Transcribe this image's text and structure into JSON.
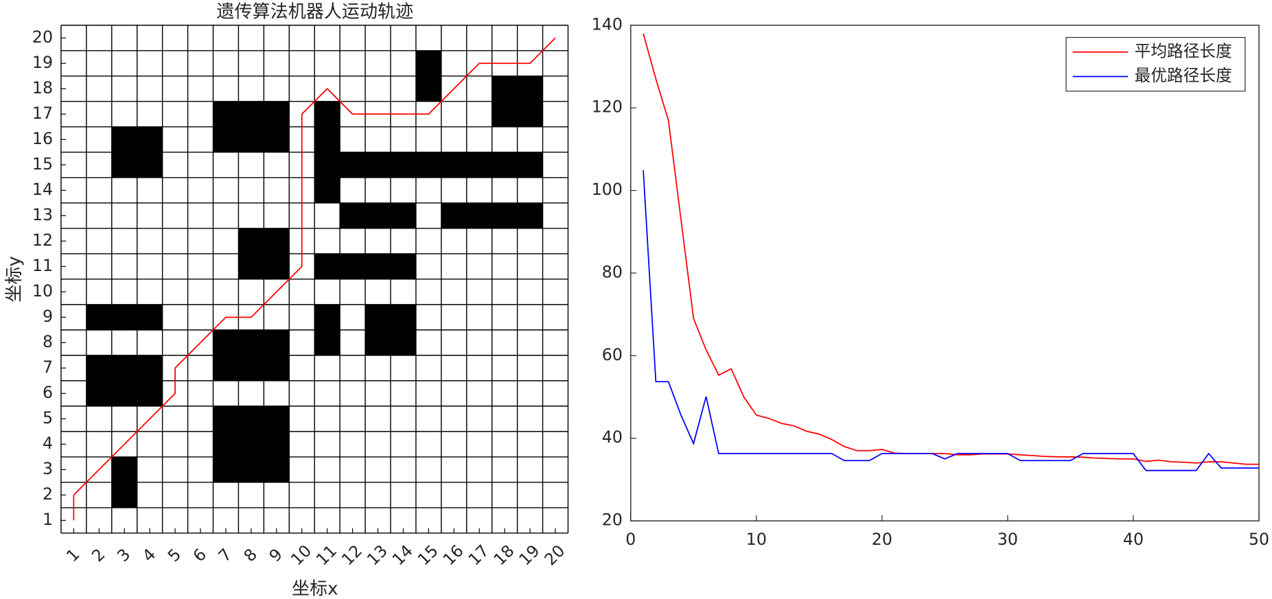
{
  "chart_data": [
    {
      "type": "grid",
      "title": "遗传算法机器人运动轨迹",
      "xlabel": "坐标x",
      "ylabel": "坐标y",
      "xlim": [
        0.5,
        20.5
      ],
      "ylim": [
        0.5,
        20.5
      ],
      "xticks": [
        1,
        2,
        3,
        4,
        5,
        6,
        7,
        8,
        9,
        10,
        11,
        12,
        13,
        14,
        15,
        16,
        17,
        18,
        19,
        20
      ],
      "yticks": [
        1,
        2,
        3,
        4,
        5,
        6,
        7,
        8,
        9,
        10,
        11,
        12,
        13,
        14,
        15,
        16,
        17,
        18,
        19,
        20
      ],
      "obstacle_color": "#000000",
      "obstacles": [
        [
          15,
          19
        ],
        [
          15,
          18
        ],
        [
          18,
          18
        ],
        [
          19,
          18
        ],
        [
          18,
          17
        ],
        [
          19,
          17
        ],
        [
          7,
          17
        ],
        [
          8,
          17
        ],
        [
          9,
          17
        ],
        [
          7,
          16
        ],
        [
          8,
          16
        ],
        [
          9,
          16
        ],
        [
          3,
          16
        ],
        [
          4,
          16
        ],
        [
          3,
          15
        ],
        [
          4,
          15
        ],
        [
          11,
          17
        ],
        [
          11,
          16
        ],
        [
          11,
          15
        ],
        [
          11,
          14
        ],
        [
          12,
          15
        ],
        [
          13,
          15
        ],
        [
          14,
          15
        ],
        [
          15,
          15
        ],
        [
          16,
          15
        ],
        [
          17,
          15
        ],
        [
          18,
          15
        ],
        [
          19,
          15
        ],
        [
          12,
          13
        ],
        [
          13,
          13
        ],
        [
          14,
          13
        ],
        [
          16,
          13
        ],
        [
          17,
          13
        ],
        [
          18,
          13
        ],
        [
          19,
          13
        ],
        [
          8,
          12
        ],
        [
          9,
          12
        ],
        [
          8,
          11
        ],
        [
          9,
          11
        ],
        [
          11,
          11
        ],
        [
          12,
          11
        ],
        [
          13,
          11
        ],
        [
          14,
          11
        ],
        [
          2,
          9
        ],
        [
          3,
          9
        ],
        [
          4,
          9
        ],
        [
          11,
          9
        ],
        [
          11,
          8
        ],
        [
          13,
          9
        ],
        [
          14,
          9
        ],
        [
          13,
          8
        ],
        [
          14,
          8
        ],
        [
          7,
          8
        ],
        [
          8,
          8
        ],
        [
          9,
          8
        ],
        [
          7,
          7
        ],
        [
          8,
          7
        ],
        [
          9,
          7
        ],
        [
          2,
          7
        ],
        [
          3,
          7
        ],
        [
          4,
          7
        ],
        [
          2,
          6
        ],
        [
          3,
          6
        ],
        [
          4,
          6
        ],
        [
          7,
          5
        ],
        [
          8,
          5
        ],
        [
          9,
          5
        ],
        [
          7,
          4
        ],
        [
          8,
          4
        ],
        [
          9,
          4
        ],
        [
          7,
          3
        ],
        [
          8,
          3
        ],
        [
          9,
          3
        ],
        [
          3,
          3
        ],
        [
          3,
          2
        ]
      ],
      "path": {
        "color": "#ff0000",
        "x": [
          1,
          1,
          5,
          5,
          7,
          8,
          10,
          10,
          11,
          12,
          15,
          17,
          19,
          20
        ],
        "y": [
          1,
          2,
          6,
          7,
          9,
          9,
          11,
          17,
          18,
          17,
          17,
          19,
          19,
          20
        ]
      }
    },
    {
      "type": "line",
      "legend": "upper right",
      "x": [
        1,
        2,
        3,
        4,
        5,
        6,
        7,
        8,
        9,
        10,
        11,
        12,
        13,
        14,
        15,
        16,
        17,
        18,
        19,
        20,
        21,
        22,
        23,
        24,
        25,
        26,
        27,
        28,
        29,
        30,
        31,
        32,
        33,
        34,
        35,
        36,
        37,
        38,
        39,
        40,
        41,
        42,
        43,
        44,
        45,
        46,
        47,
        48,
        49,
        50
      ],
      "xlim": [
        0,
        50
      ],
      "ylim": [
        20,
        140
      ],
      "xticks": [
        0,
        10,
        20,
        30,
        40,
        50
      ],
      "yticks": [
        20,
        40,
        60,
        80,
        100,
        120,
        140
      ],
      "series": [
        {
          "name": "平均路径长度",
          "color": "#ff0000",
          "values": [
            138,
            127,
            117,
            93,
            69,
            61.4,
            55.3,
            56.8,
            50,
            45.6,
            44.8,
            43.6,
            43,
            41.7,
            41,
            39.7,
            38,
            37,
            37,
            37.3,
            36.4,
            36.3,
            36.3,
            36.3,
            36.3,
            36,
            36,
            36.2,
            36.2,
            36.2,
            36,
            35.8,
            35.6,
            35.5,
            35.5,
            35.4,
            35.2,
            35.1,
            35,
            35,
            34.4,
            34.7,
            34.3,
            34.2,
            34,
            34.3,
            34.3,
            34,
            33.7,
            33.7
          ]
        },
        {
          "name": "最优路径长度",
          "color": "#0000ff",
          "values": [
            104.9,
            53.7,
            53.7,
            45.6,
            38.7,
            50.1,
            36.3,
            36.3,
            36.3,
            36.3,
            36.3,
            36.3,
            36.3,
            36.3,
            36.3,
            36.3,
            34.6,
            34.6,
            34.6,
            36.3,
            36.3,
            36.3,
            36.3,
            36.3,
            35,
            36.3,
            36.3,
            36.3,
            36.3,
            36.3,
            34.6,
            34.6,
            34.6,
            34.6,
            34.6,
            36.3,
            36.3,
            36.3,
            36.3,
            36.3,
            32.2,
            32.2,
            32.2,
            32.2,
            32.2,
            36.3,
            32.8,
            32.8,
            32.8,
            32.8
          ]
        }
      ]
    }
  ]
}
